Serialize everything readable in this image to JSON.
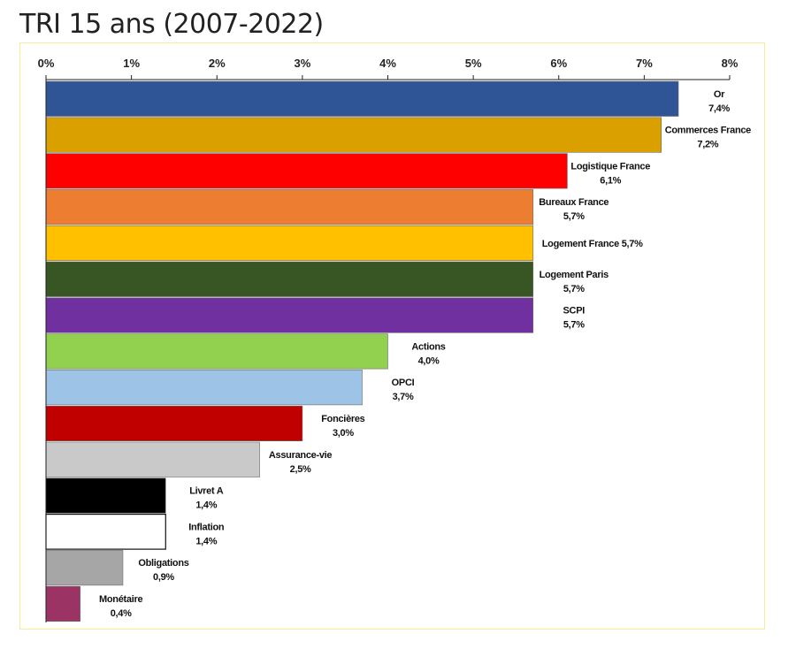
{
  "page": {
    "title": "TRI 15 ans (2007-2022)"
  },
  "chart_data": {
    "type": "bar",
    "orientation": "horizontal",
    "title": "TRI 15 ans (2007-2022)",
    "xlabel": "",
    "ylabel": "",
    "xlim": [
      0,
      8
    ],
    "x_ticks": [
      "0%",
      "1%",
      "2%",
      "3%",
      "4%",
      "5%",
      "6%",
      "7%",
      "8%"
    ],
    "grid": false,
    "legend": "none",
    "bars": [
      {
        "name": "Or",
        "value": 7.4,
        "value_label": "7,4%",
        "color": "#2f5597",
        "label_style": "two-line"
      },
      {
        "name": "Commerces France",
        "value": 7.2,
        "value_label": "7,2%",
        "color": "#d9a000",
        "label_style": "two-line"
      },
      {
        "name": "Logistique France",
        "value": 6.1,
        "value_label": "6,1%",
        "color": "#ff0000",
        "label_style": "two-line"
      },
      {
        "name": "Bureaux France",
        "value": 5.7,
        "value_label": "5,7%",
        "color": "#ed7d31",
        "label_style": "two-line"
      },
      {
        "name": "Logement France",
        "value": 5.7,
        "value_label": "5,7%",
        "color": "#ffc000",
        "label_style": "one-line"
      },
      {
        "name": "Logement Paris",
        "value": 5.7,
        "value_label": "5,7%",
        "color": "#375623",
        "label_style": "two-line"
      },
      {
        "name": "SCPI",
        "value": 5.7,
        "value_label": "5,7%",
        "color": "#7030a0",
        "label_style": "two-line"
      },
      {
        "name": "Actions",
        "value": 4.0,
        "value_label": "4,0%",
        "color": "#92d050",
        "label_style": "two-line"
      },
      {
        "name": "OPCI",
        "value": 3.7,
        "value_label": "3,7%",
        "color": "#9dc3e6",
        "label_style": "two-line"
      },
      {
        "name": "Foncières",
        "value": 3.0,
        "value_label": "3,0%",
        "color": "#c00000",
        "label_style": "two-line"
      },
      {
        "name": "Assurance-vie",
        "value": 2.5,
        "value_label": "2,5%",
        "color": "#c9c9c9",
        "label_style": "two-line"
      },
      {
        "name": "Livret A",
        "value": 1.4,
        "value_label": "1,4%",
        "color": "#000000",
        "label_style": "two-line"
      },
      {
        "name": "Inflation",
        "value": 1.4,
        "value_label": "1,4%",
        "color": "#ffffff",
        "label_style": "two-line"
      },
      {
        "name": "Obligations",
        "value": 0.9,
        "value_label": "0,9%",
        "color": "#a6a6a6",
        "label_style": "two-line"
      },
      {
        "name": "Monétaire",
        "value": 0.4,
        "value_label": "0,4%",
        "color": "#9b3464",
        "label_style": "two-line"
      }
    ]
  }
}
